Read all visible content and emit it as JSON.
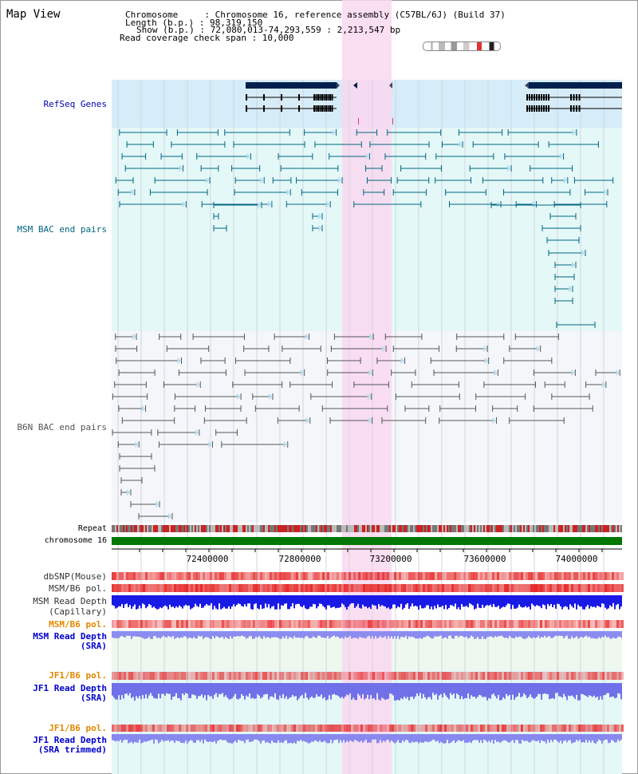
{
  "header": {
    "view_title": "Map View",
    "chromosome_line": "Chromosome     : Chromosome 16, reference assembly (C57BL/6J) (Build 37)",
    "length_line": "Length (b.p.) : 98,319,150",
    "show_line": "Show (b.p.) : 72,080,013-74,293,559 : 2,213,547 bp",
    "coverage_line": "Read coverage check span : 10,000"
  },
  "tracks": {
    "refseq": {
      "label": "RefSeq Genes",
      "color": "#0000aa"
    },
    "msm_bac": {
      "label": "MSM BAC end pairs",
      "color": "#006680"
    },
    "b6n_bac": {
      "label": "B6N BAC end pairs",
      "color": "#555555"
    },
    "repeat": {
      "label": "Repeat"
    },
    "chromosome": {
      "label": "chromosome 16"
    },
    "dbsnp": {
      "label": "dbSNP(Mouse)"
    },
    "msm_b6_pol_1": {
      "label": "MSM/B6 pol."
    },
    "msm_read_depth_cap": {
      "line1": "MSM Read Depth",
      "line2": "(Capillary)"
    },
    "msm_b6_pol_2": {
      "label": "MSM/B6 pol."
    },
    "msm_read_depth_sra": {
      "line1": "MSM Read Depth",
      "line2": "(SRA)"
    },
    "jf1_b6_pol_1": {
      "label": "JF1/B6 pol."
    },
    "jf1_read_depth_sra": {
      "line1": "JF1 Read Depth",
      "line2": "(SRA)"
    },
    "jf1_b6_pol_2": {
      "label": "JF1/B6 pol."
    },
    "jf1_read_depth_trim": {
      "line1": "JF1 Read Depth",
      "line2": "(SRA trimmed)"
    }
  },
  "axis": {
    "ticks": [
      "72400000",
      "72800000",
      "73200000",
      "73600000",
      "74000000"
    ]
  },
  "colors": {
    "highlight": "#f9d8f0",
    "refseq_bg": "#d6ecf8",
    "msm_bg": "#e4f8f8",
    "b6n_bg": "#f4f6fa",
    "chromosome_bar": "#007700",
    "gene_dark": "#00204d",
    "label_blue": "#0000cc",
    "label_orange": "#e08800"
  }
}
